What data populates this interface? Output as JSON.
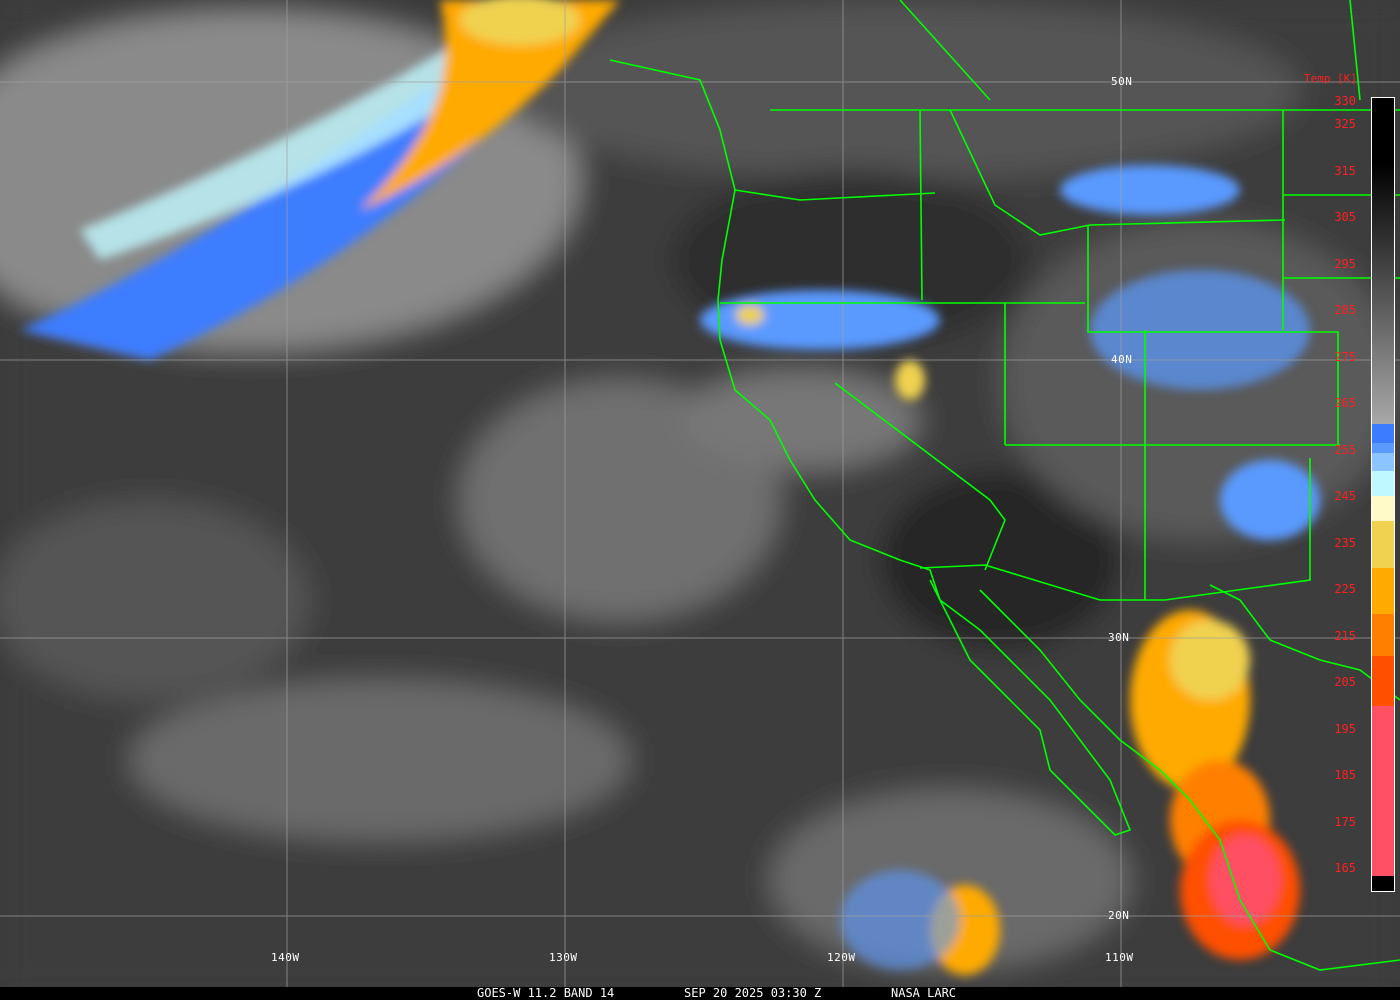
{
  "caption": {
    "satellite": "GOES-W 11.2 BAND 14",
    "datetime": "SEP 20 2025 03:30 Z",
    "source": "NASA LARC"
  },
  "grid": {
    "latitudes": [
      "50N",
      "40N",
      "30N",
      "20N"
    ],
    "longitudes": [
      "140W",
      "130W",
      "120W",
      "110W"
    ]
  },
  "colorbar": {
    "title": "Temp [K]",
    "ticks": [
      "330",
      "325",
      "315",
      "305",
      "295",
      "285",
      "275",
      "265",
      "255",
      "245",
      "235",
      "225",
      "215",
      "205",
      "195",
      "185",
      "175",
      "165"
    ],
    "range_k": [
      165,
      330
    ],
    "segments": [
      {
        "color": "#000000",
        "to": "#a8a8a8"
      },
      {
        "color": "#3c7dff"
      },
      {
        "color": "#5a9aff"
      },
      {
        "color": "#8cc4ff"
      },
      {
        "color": "#c0f8ff"
      },
      {
        "color": "#fffac8"
      },
      {
        "color": "#f0d250"
      },
      {
        "color": "#ffaa00"
      },
      {
        "color": "#ff8000"
      },
      {
        "color": "#ff5000"
      },
      {
        "color": "#ff5064"
      },
      {
        "color": "#000000"
      }
    ]
  },
  "colors": {
    "borders": "#00ff00",
    "labels": "#ff2020",
    "gridlines": "#a0a0a0"
  }
}
